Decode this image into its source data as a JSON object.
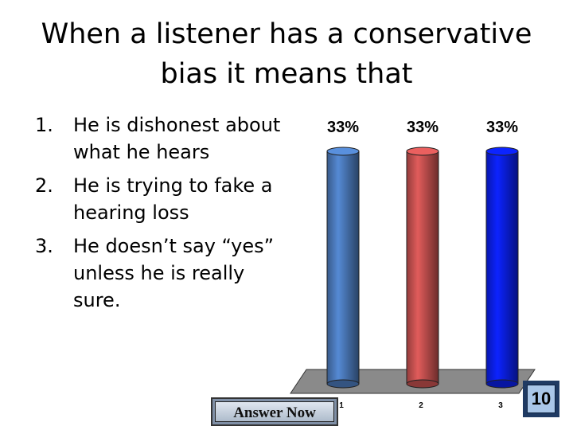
{
  "slide": {
    "title": "When a listener has a conservative bias it means that"
  },
  "options": [
    {
      "number": "1.",
      "text": "He is dishonest about what he hears"
    },
    {
      "number": "2.",
      "text": "He is trying to fake a hearing loss"
    },
    {
      "number": "3.",
      "text": "He doesn’t say “yes” unless he is really sure."
    }
  ],
  "controls": {
    "answer_label": "Answer Now",
    "countdown": "10"
  },
  "chart_data": {
    "type": "bar",
    "categories": [
      "1",
      "2",
      "3"
    ],
    "values": [
      33,
      33,
      33
    ],
    "value_labels": [
      "33%",
      "33%",
      "33%"
    ],
    "ylim": [
      0,
      33
    ],
    "colors": [
      "#4a78b8",
      "#c4504f",
      "#0a1ee6"
    ],
    "style": "3d-cylinder"
  }
}
